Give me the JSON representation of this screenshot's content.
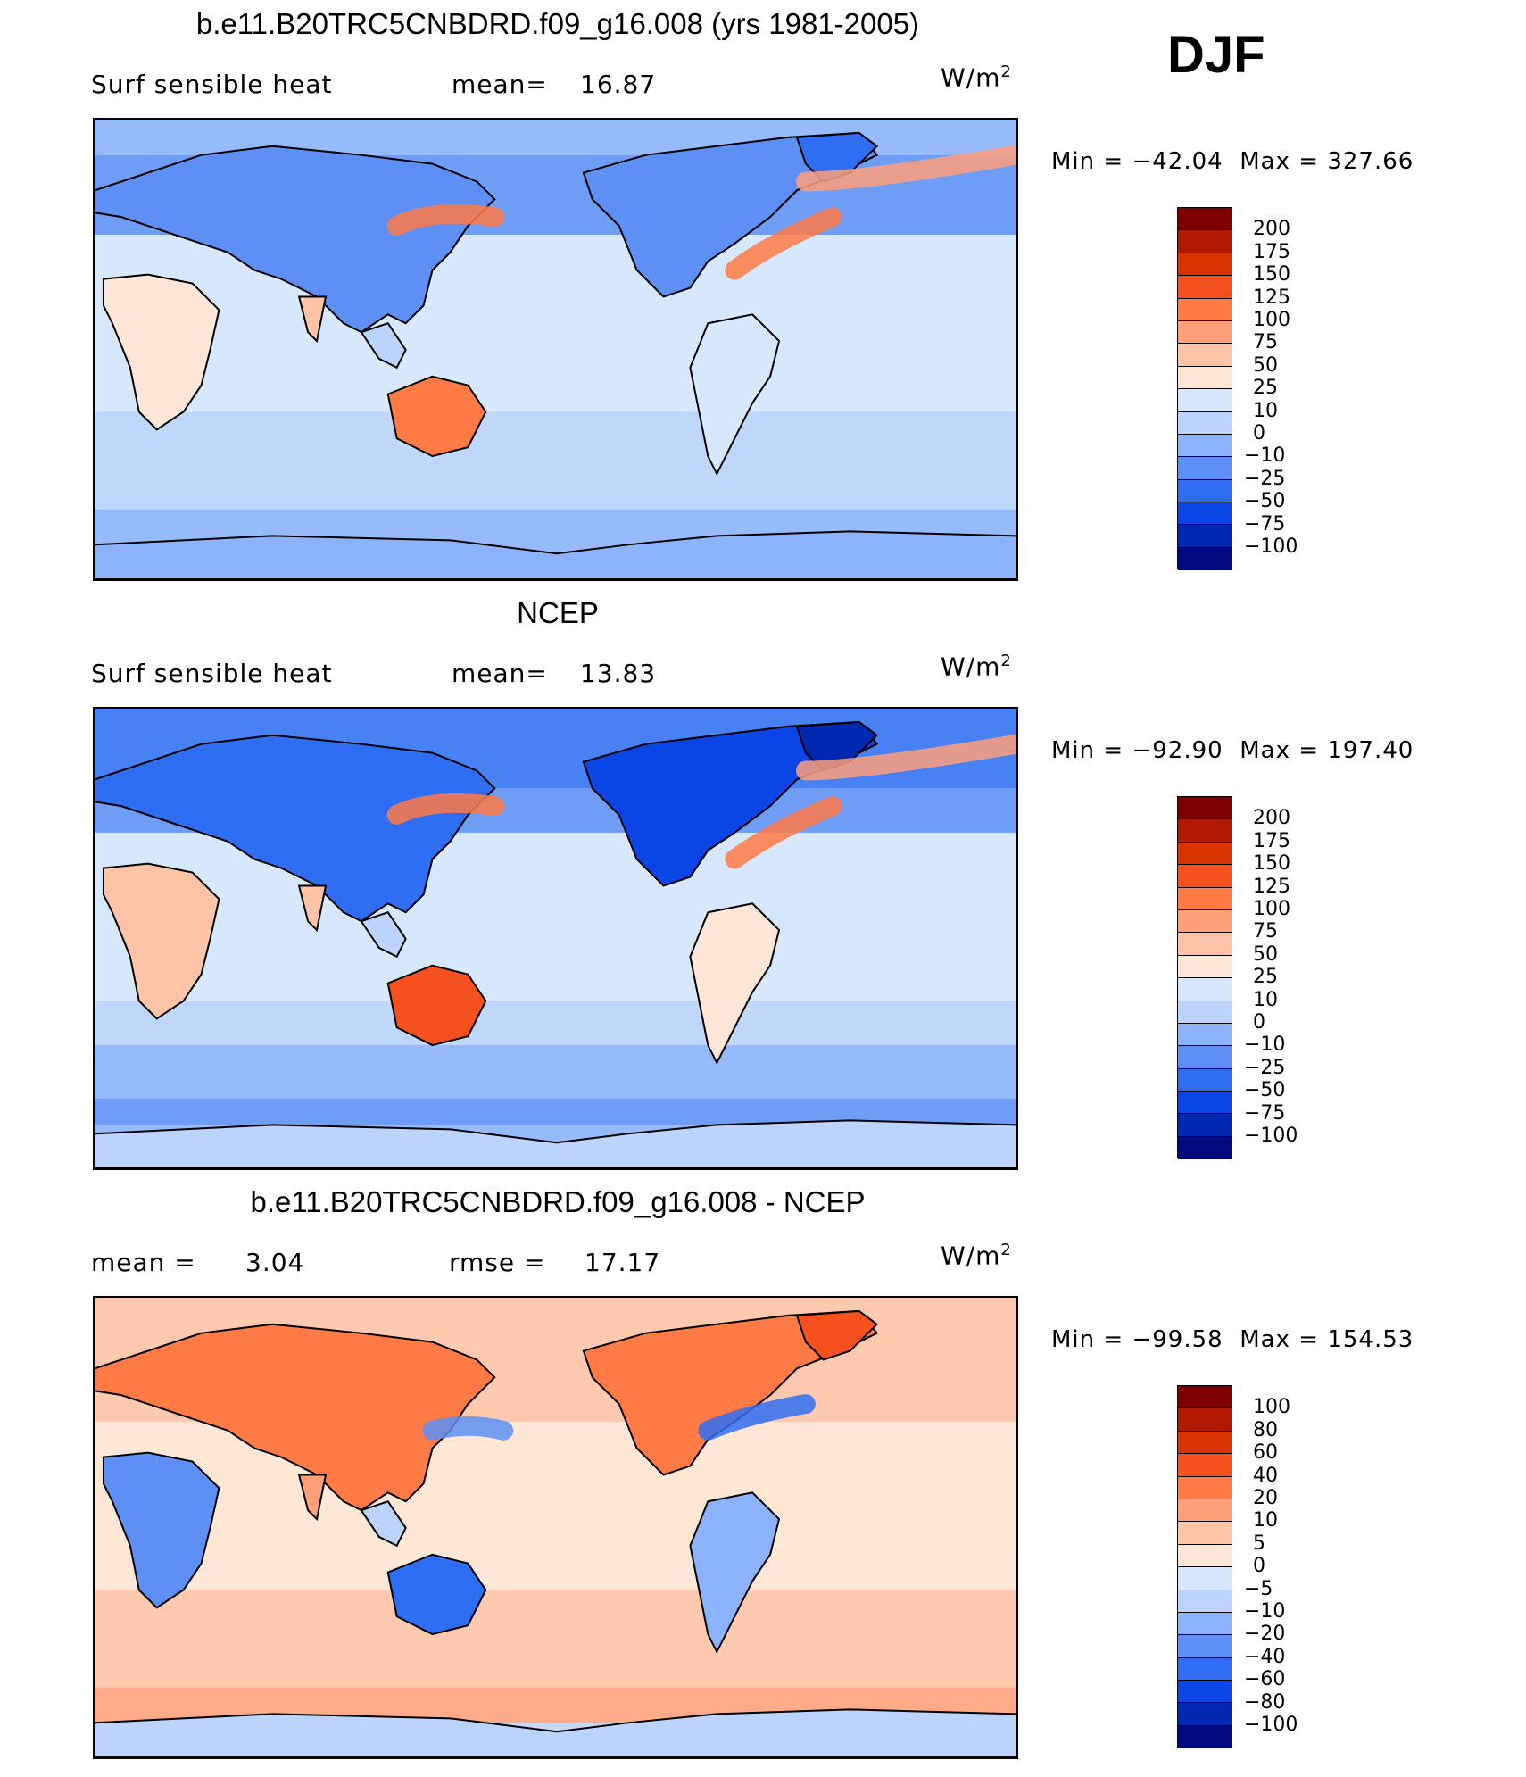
{
  "season": "DJF",
  "panels": [
    {
      "title": "b.e11.B20TRC5CNBDRD.f09_g16.008 (yrs 1981-2005)",
      "left_label": "Surf sensible heat",
      "mid_label": "mean=",
      "mid_value": "16.87",
      "units_base": "W/m",
      "units_exp": "2",
      "min_label": "Min",
      "min_value": "−42.04",
      "max_label": "Max",
      "max_value": "327.66",
      "levels": [
        "200",
        "175",
        "150",
        "125",
        "100",
        "75",
        "50",
        "25",
        "10",
        "0",
        "−10",
        "−25",
        "−50",
        "−75",
        "−100"
      ],
      "colors": [
        "#7f0000",
        "#b21a00",
        "#d93300",
        "#f4511e",
        "#ff7a45",
        "#ff9f7a",
        "#ffc3a8",
        "#ffe6d6",
        "#d7e8fd",
        "#bcd3fb",
        "#8bb2fa",
        "#5d8ff5",
        "#2f6ef2",
        "#0c45e6",
        "#0028b0",
        "#000a7e"
      ],
      "map_style": "model"
    },
    {
      "title": "NCEP",
      "left_label": "Surf sensible heat",
      "mid_label": "mean=",
      "mid_value": "13.83",
      "units_base": "W/m",
      "units_exp": "2",
      "min_label": "Min",
      "min_value": "−92.90",
      "max_label": "Max",
      "max_value": "197.40",
      "levels": [
        "200",
        "175",
        "150",
        "125",
        "100",
        "75",
        "50",
        "25",
        "10",
        "0",
        "−10",
        "−25",
        "−50",
        "−75",
        "−100"
      ],
      "colors": [
        "#7f0000",
        "#b21a00",
        "#d93300",
        "#f4511e",
        "#ff7a45",
        "#ff9f7a",
        "#ffc3a8",
        "#ffe6d6",
        "#d7e8fd",
        "#bcd3fb",
        "#8bb2fa",
        "#5d8ff5",
        "#2f6ef2",
        "#0c45e6",
        "#0028b0",
        "#000a7e"
      ],
      "map_style": "obs"
    },
    {
      "title": "b.e11.B20TRC5CNBDRD.f09_g16.008 - NCEP",
      "left_label": "mean =",
      "left_value": "3.04",
      "mid_label": "rmse =",
      "mid_value": "17.17",
      "units_base": "W/m",
      "units_exp": "2",
      "min_label": "Min",
      "min_value": "−99.58",
      "max_label": "Max",
      "max_value": "154.53",
      "levels": [
        "100",
        "80",
        "60",
        "40",
        "20",
        "10",
        "5",
        "0",
        "−5",
        "−10",
        "−20",
        "−40",
        "−60",
        "−80",
        "−100"
      ],
      "colors": [
        "#7f0000",
        "#b21a00",
        "#d93300",
        "#f4511e",
        "#ff7a45",
        "#ff9f7a",
        "#ffc3a8",
        "#ffe6d6",
        "#d7e8fd",
        "#bcd3fb",
        "#8bb2fa",
        "#5d8ff5",
        "#2f6ef2",
        "#0c45e6",
        "#0028b0",
        "#000a7e"
      ],
      "map_style": "diff"
    }
  ],
  "chart_data": [
    {
      "type": "heatmap",
      "title": "b.e11.B20TRC5CNBDRD.f09_g16.008 (yrs 1981-2005)",
      "variable": "Surf sensible heat",
      "units": "W/m2",
      "mean": 16.87,
      "min": -42.04,
      "max": 327.66,
      "contour_levels": [
        -100,
        -75,
        -50,
        -25,
        -10,
        0,
        10,
        25,
        50,
        75,
        100,
        125,
        150,
        175,
        200
      ]
    },
    {
      "type": "heatmap",
      "title": "NCEP",
      "variable": "Surf sensible heat",
      "units": "W/m2",
      "mean": 13.83,
      "min": -92.9,
      "max": 197.4,
      "contour_levels": [
        -100,
        -75,
        -50,
        -25,
        -10,
        0,
        10,
        25,
        50,
        75,
        100,
        125,
        150,
        175,
        200
      ]
    },
    {
      "type": "heatmap",
      "title": "b.e11.B20TRC5CNBDRD.f09_g16.008 - NCEP",
      "units": "W/m2",
      "mean": 3.04,
      "rmse": 17.17,
      "min": -99.58,
      "max": 154.53,
      "contour_levels": [
        -100,
        -80,
        -60,
        -40,
        -20,
        -10,
        -5,
        0,
        5,
        10,
        20,
        40,
        60,
        80,
        100
      ]
    }
  ]
}
